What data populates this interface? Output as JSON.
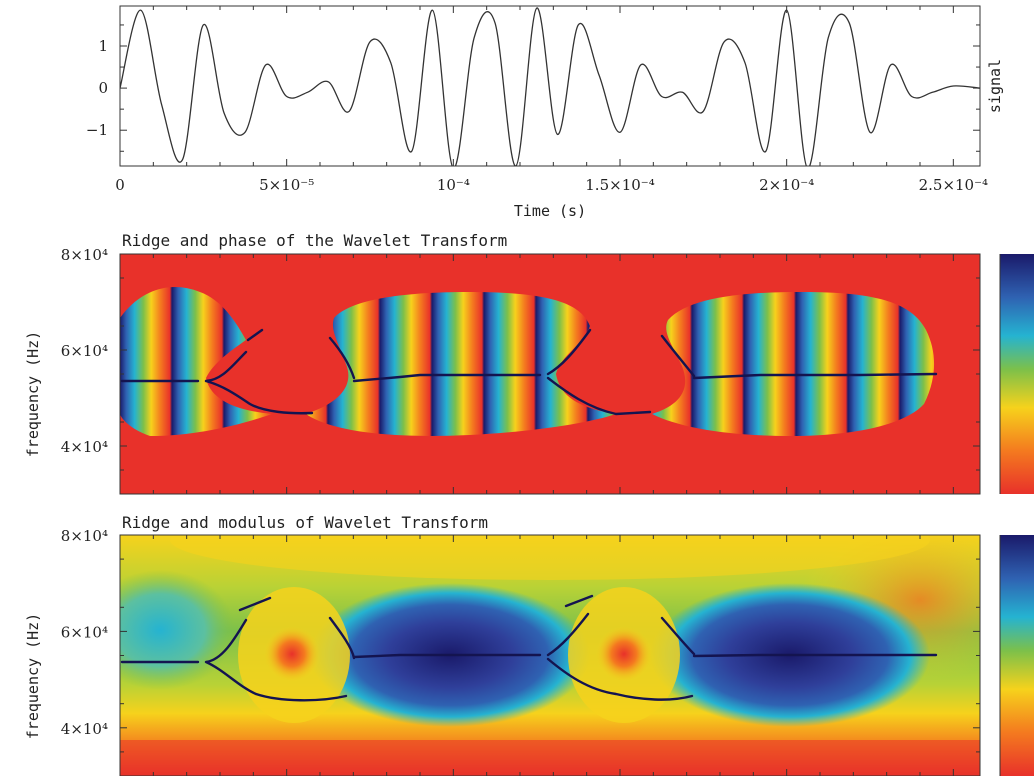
{
  "chart_data": [
    {
      "type": "line",
      "title": "",
      "xlabel": "Time (s)",
      "ylabel": "signal",
      "xlim": [
        0,
        0.000258
      ],
      "ylim": [
        -1.85,
        1.95
      ],
      "x_ticks": [
        {
          "value": 0,
          "label": "0"
        },
        {
          "value": 5e-05,
          "label": "5×10⁻⁵"
        },
        {
          "value": 0.0001,
          "label": "10⁻⁴"
        },
        {
          "value": 0.00015,
          "label": "1.5×10⁻⁴"
        },
        {
          "value": 0.0002,
          "label": "2×10⁻⁴"
        },
        {
          "value": 0.00025,
          "label": "2.5×10⁻⁴"
        }
      ],
      "y_ticks": [
        {
          "value": 1,
          "label": "1"
        },
        {
          "value": 0,
          "label": "0"
        },
        {
          "value": -1,
          "label": "−1"
        }
      ],
      "series": [
        {
          "x": [
            0,
            6.25e-06,
            1.25e-05,
            1.875e-05,
            2.5e-05,
            3.125e-05,
            3.75e-05,
            4.375e-05,
            5e-05,
            5.625e-05,
            6.25e-05,
            6.875e-05,
            7.5e-05,
            8.125e-05,
            8.75e-05,
            9.375e-05,
            0.0001,
            0.00010625,
            0.0001125,
            0.00011875,
            0.000125,
            0.00013125,
            0.0001375,
            0.00014375,
            0.00015,
            0.00015625,
            0.0001625,
            0.00016875,
            0.000175,
            0.00018125,
            0.0001875,
            0.00019375,
            0.0002,
            0.00020625,
            0.0002125,
            0.00021875,
            0.000225,
            0.00023125,
            0.0002375,
            0.00024375,
            0.00025,
            0.000258
          ],
          "values": [
            0,
            1.85,
            -0.4,
            -1.7,
            1.5,
            -0.6,
            -1.05,
            0.55,
            -0.2,
            -0.1,
            0.15,
            -0.55,
            1.1,
            0.6,
            -1.5,
            1.85,
            -1.9,
            1.2,
            1.55,
            -1.85,
            1.9,
            -1.1,
            1.5,
            0.3,
            -1.05,
            0.55,
            -0.2,
            -0.1,
            -0.55,
            1.1,
            0.6,
            -1.5,
            1.85,
            -1.9,
            1.2,
            1.55,
            -1.05,
            0.55,
            -0.2,
            -0.1,
            0.05,
            0
          ]
        }
      ]
    },
    {
      "type": "heatmap",
      "title": "Ridge and phase of the Wavelet Transform",
      "xlabel": "",
      "ylabel": "frequency (Hz)",
      "xlim": [
        0,
        0.000258
      ],
      "ylim": [
        30000,
        80000
      ],
      "y_ticks": [
        {
          "value": 80000,
          "label": "8×10⁴"
        },
        {
          "value": 60000,
          "label": "6×10⁴"
        },
        {
          "value": 40000,
          "label": "4×10⁴"
        }
      ],
      "ridge_frequency": 55000,
      "colorscale": [
        "#e8312a",
        "#f47a1f",
        "#f6d21c",
        "#7cc04a",
        "#25b3d1",
        "#2f62b2",
        "#1a1a6a"
      ]
    },
    {
      "type": "heatmap",
      "title": "Ridge and modulus of Wavelet Transform",
      "xlabel": "",
      "ylabel": "frequency (Hz)",
      "xlim": [
        0,
        0.000258
      ],
      "ylim": [
        30000,
        80000
      ],
      "y_ticks": [
        {
          "value": 80000,
          "label": "8×10⁴"
        },
        {
          "value": 60000,
          "label": "6×10⁴"
        },
        {
          "value": 40000,
          "label": "4×10⁴"
        }
      ],
      "ridge_frequency": 55000,
      "colorscale": [
        "#e8312a",
        "#f47a1f",
        "#f6d21c",
        "#7cc04a",
        "#25b3d1",
        "#2f62b2",
        "#1a1a6a"
      ]
    }
  ]
}
